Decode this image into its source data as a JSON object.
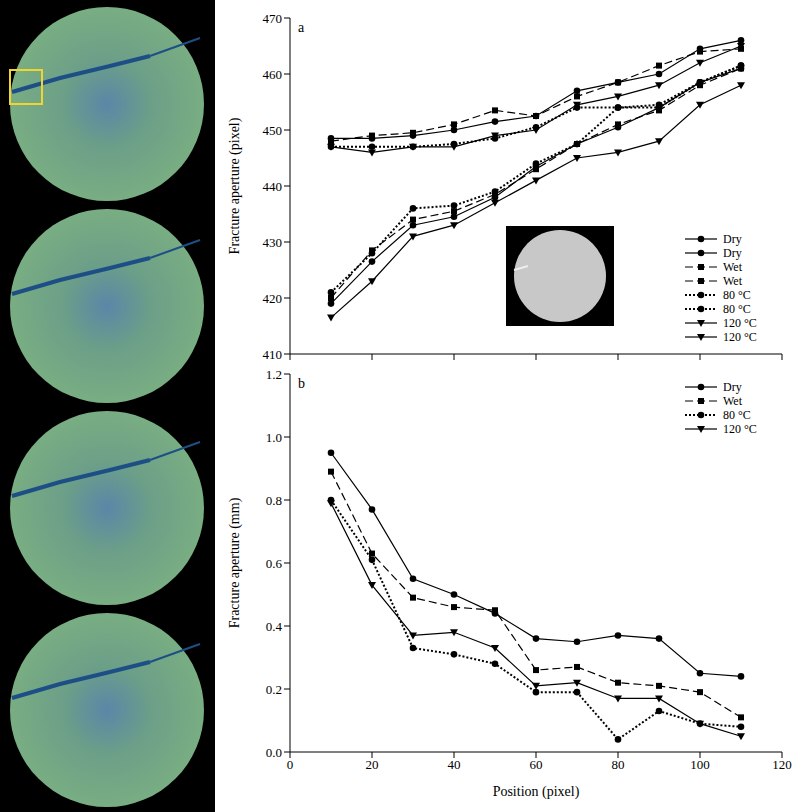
{
  "chart_data": [
    {
      "type": "line",
      "panel_label": "a",
      "y_label": "Fracture aperture (pixel)",
      "x": [
        10,
        20,
        30,
        40,
        50,
        60,
        70,
        80,
        90,
        100,
        110
      ],
      "xlim": [
        0,
        120
      ],
      "xticks": [
        0,
        20,
        40,
        60,
        80,
        100,
        120
      ],
      "ylim": [
        410,
        470
      ],
      "yticks": [
        410,
        420,
        430,
        440,
        450,
        460,
        470
      ],
      "tick_labels": "y",
      "grid": false,
      "legend": "lower right",
      "series": [
        {
          "name": "Dry",
          "color": "#000000",
          "marker": "circle",
          "line_style": "solid",
          "values": [
            448.5,
            448.5,
            449,
            450,
            451.5,
            452.5,
            457,
            458.5,
            460,
            464.5,
            466
          ]
        },
        {
          "name": "Dry",
          "color": "#000000",
          "marker": "circle",
          "line_style": "solid",
          "values": [
            419,
            426.5,
            433,
            434.5,
            438,
            443.5,
            447.5,
            450.5,
            454,
            458.5,
            461
          ]
        },
        {
          "name": "Wet",
          "color": "#000000",
          "marker": "square",
          "line_style": "dashed",
          "values": [
            448,
            449,
            449.5,
            451,
            453.5,
            452.5,
            456,
            458.5,
            461.5,
            464,
            464.5
          ]
        },
        {
          "name": "Wet",
          "color": "#000000",
          "marker": "square",
          "line_style": "dashed",
          "values": [
            420,
            428.5,
            434,
            435.5,
            438.5,
            443,
            447.5,
            451,
            453.5,
            458,
            461
          ]
        },
        {
          "name": "80 °C",
          "color": "#000000",
          "marker": "circle",
          "line_style": "dotted",
          "values": [
            447,
            447,
            447,
            447.5,
            448.5,
            450.5,
            454,
            454,
            454.5,
            458.5,
            461.5
          ]
        },
        {
          "name": "80 °C",
          "color": "#000000",
          "marker": "circle",
          "line_style": "dotted",
          "values": [
            421,
            428,
            436,
            436.5,
            439,
            444,
            447.5,
            454,
            454,
            458.5,
            461.5
          ]
        },
        {
          "name": "120 °C",
          "color": "#000000",
          "marker": "triangle",
          "line_style": "solid",
          "values": [
            447,
            446,
            447,
            447,
            449,
            450,
            454.5,
            456,
            458,
            462,
            465
          ]
        },
        {
          "name": "120 °C",
          "color": "#000000",
          "marker": "triangle",
          "line_style": "solid",
          "values": [
            416.5,
            423,
            431,
            433,
            437,
            441,
            445,
            446,
            448,
            454.5,
            458
          ]
        }
      ]
    },
    {
      "type": "line",
      "panel_label": "b",
      "x_label": "Position (pixel)",
      "y_label": "Fracture aperture (mm)",
      "x": [
        10,
        20,
        30,
        40,
        50,
        60,
        70,
        80,
        90,
        100,
        110
      ],
      "xlim": [
        0,
        120
      ],
      "xticks": [
        0,
        20,
        40,
        60,
        80,
        100,
        120
      ],
      "ylim": [
        0,
        1.2
      ],
      "yticks": [
        {
          "value": 0,
          "label": "0.0"
        },
        0.2,
        0.4,
        0.6,
        0.8,
        {
          "value": 1,
          "label": "1.0"
        },
        1.2
      ],
      "grid": false,
      "legend": "upper right",
      "series": [
        {
          "name": "Dry",
          "color": "#000000",
          "marker": "circle",
          "line_style": "solid",
          "values": [
            0.95,
            0.77,
            0.55,
            0.5,
            0.44,
            0.36,
            0.35,
            0.37,
            0.36,
            0.25,
            0.24
          ]
        },
        {
          "name": "Wet",
          "color": "#000000",
          "marker": "square",
          "line_style": "dashed",
          "values": [
            0.89,
            0.63,
            0.49,
            0.46,
            0.45,
            0.26,
            0.27,
            0.22,
            0.21,
            0.19,
            0.11
          ]
        },
        {
          "name": "80 °C",
          "color": "#000000",
          "marker": "circle",
          "line_style": "dotted",
          "values": [
            0.8,
            0.61,
            0.33,
            0.31,
            0.28,
            0.19,
            0.19,
            0.04,
            0.13,
            0.09,
            0.08
          ]
        },
        {
          "name": "120 °C",
          "color": "#000000",
          "marker": "triangle",
          "line_style": "solid",
          "values": [
            0.79,
            0.53,
            0.37,
            0.38,
            0.33,
            0.21,
            0.22,
            0.17,
            0.17,
            0.09,
            0.05
          ]
        }
      ]
    }
  ]
}
